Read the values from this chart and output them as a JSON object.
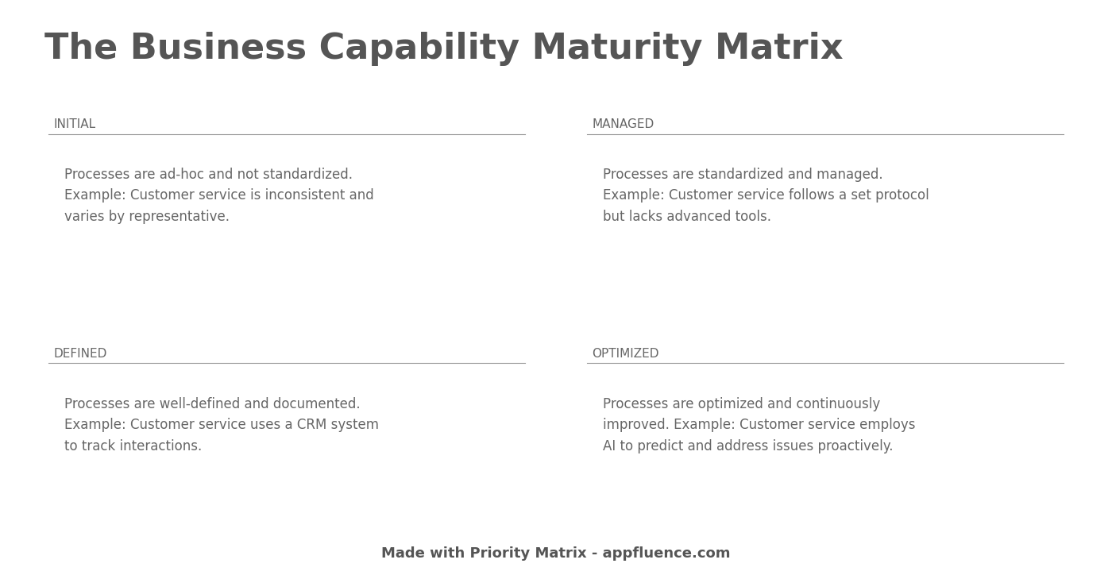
{
  "title": "The Business Capability Maturity Matrix",
  "title_color": "#555555",
  "title_fontsize": 32,
  "title_fontweight": "bold",
  "background_color": "#ffffff",
  "footer_bg_color": "#f5f5d8",
  "footer_text": "Made with Priority Matrix - appfluence.com",
  "footer_color": "#555555",
  "divider_line_color": "#999999",
  "text_color": "#666666",
  "label_color": "#666666",
  "cells": [
    {
      "label": "INITIAL",
      "body": "Processes are ad-hoc and not standardized.\nExample: Customer service is inconsistent and\nvaries by representative.",
      "col": 0,
      "row": 0,
      "bg": "#dff0f5"
    },
    {
      "label": "MANAGED",
      "body": "Processes are standardized and managed.\nExample: Customer service follows a set protocol\nbut lacks advanced tools.",
      "col": 1,
      "row": 0,
      "bg": "#cde9f2"
    },
    {
      "label": "DEFINED",
      "body": "Processes are well-defined and documented.\nExample: Customer service uses a CRM system\nto track interactions.",
      "col": 0,
      "row": 1,
      "bg": "#cde9f2"
    },
    {
      "label": "OPTIMIZED",
      "body": "Processes are optimized and continuously\nimproved. Example: Customer service employs\nAI to predict and address issues proactively.",
      "col": 1,
      "row": 1,
      "bg": "#bce4ef"
    }
  ]
}
